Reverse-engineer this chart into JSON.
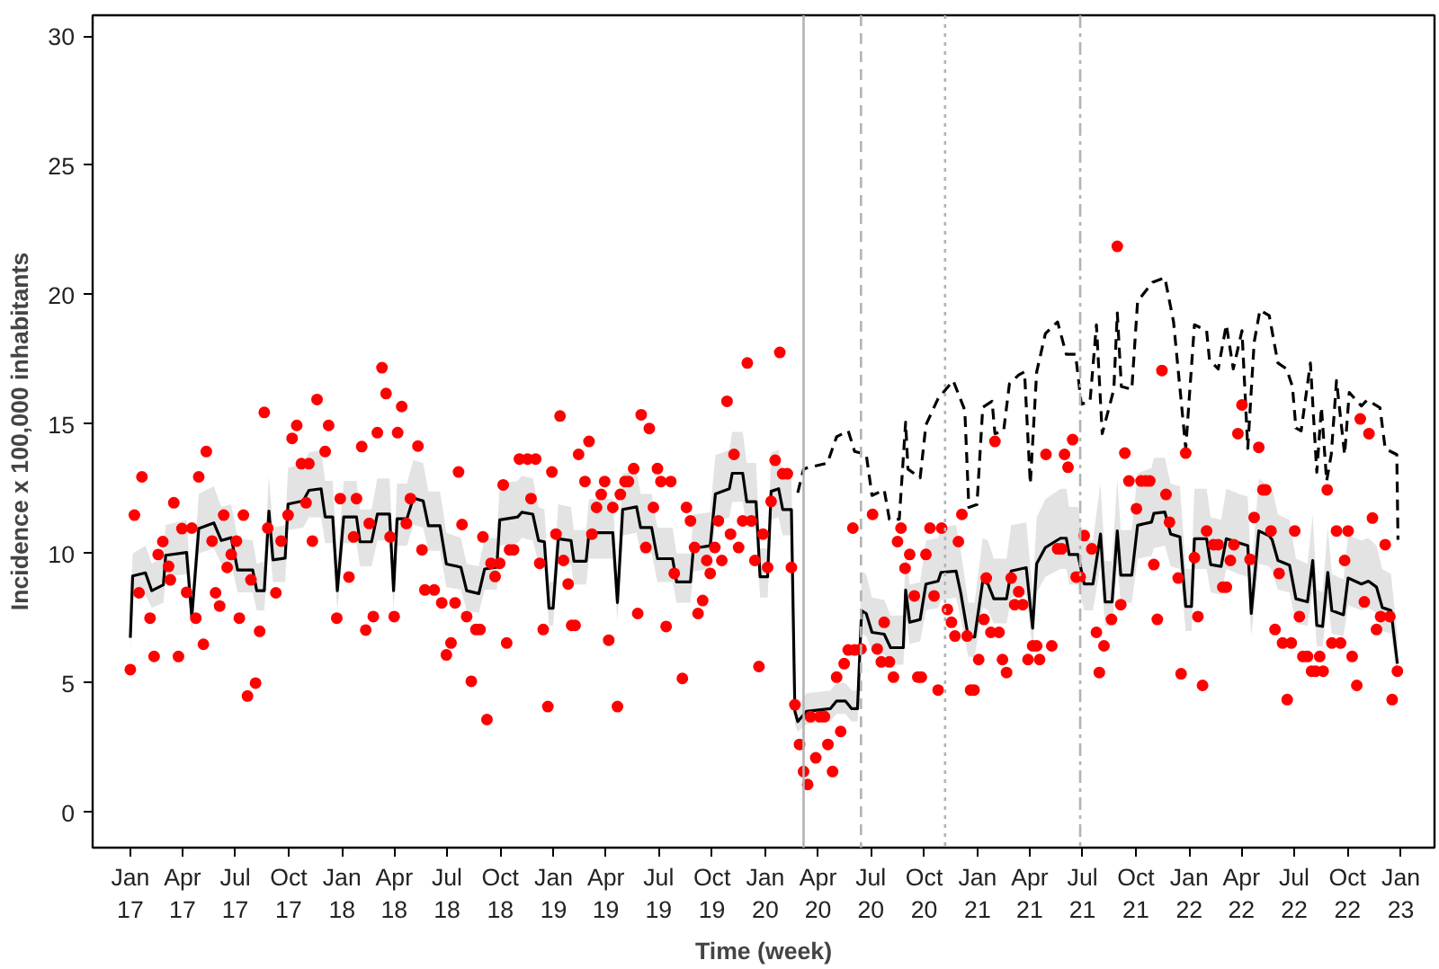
{
  "chart_data": {
    "type": "line",
    "xlabel": "Time (week)",
    "ylabel": "Incidence x 100,000 inhabitants",
    "xlim": [
      "2016-10-28",
      "2023-02-28"
    ],
    "ylim": [
      -1.37,
      30.8
    ],
    "xticks": [
      {
        "value": "2017-01-01",
        "label": "Jan\n17"
      },
      {
        "value": "2017-04-01",
        "label": "Apr\n17"
      },
      {
        "value": "2017-07-01",
        "label": "Jul\n17"
      },
      {
        "value": "2017-10-01",
        "label": "Oct\n17"
      },
      {
        "value": "2018-01-01",
        "label": "Jan\n18"
      },
      {
        "value": "2018-04-01",
        "label": "Apr\n18"
      },
      {
        "value": "2018-07-01",
        "label": "Jul\n18"
      },
      {
        "value": "2018-10-01",
        "label": "Oct\n18"
      },
      {
        "value": "2019-01-01",
        "label": "Jan\n19"
      },
      {
        "value": "2019-04-01",
        "label": "Apr\n19"
      },
      {
        "value": "2019-07-01",
        "label": "Jul\n19"
      },
      {
        "value": "2019-10-01",
        "label": "Oct\n19"
      },
      {
        "value": "2020-01-01",
        "label": "Jan\n20"
      },
      {
        "value": "2020-04-01",
        "label": "Apr\n20"
      },
      {
        "value": "2020-07-01",
        "label": "Jul\n20"
      },
      {
        "value": "2020-10-01",
        "label": "Oct\n20"
      },
      {
        "value": "2021-01-01",
        "label": "Jan\n21"
      },
      {
        "value": "2021-04-01",
        "label": "Apr\n21"
      },
      {
        "value": "2021-07-01",
        "label": "Jul\n21"
      },
      {
        "value": "2021-10-01",
        "label": "Oct\n21"
      },
      {
        "value": "2022-01-01",
        "label": "Jan\n22"
      },
      {
        "value": "2022-04-01",
        "label": "Apr\n22"
      },
      {
        "value": "2022-07-01",
        "label": "Jul\n22"
      },
      {
        "value": "2022-10-01",
        "label": "Oct\n22"
      },
      {
        "value": "2023-01-01",
        "label": "Jan\n23"
      }
    ],
    "yticks": [
      0,
      5,
      10,
      15,
      20,
      25,
      30
    ],
    "grid": false,
    "ref_lines": [
      {
        "axis": "x",
        "value": "2020-03-07",
        "color": "#b3b3b3",
        "line_style": "solid"
      },
      {
        "axis": "x",
        "value": "2020-06-14",
        "color": "#b3b3b3",
        "line_style": "dashed"
      },
      {
        "axis": "x",
        "value": "2020-11-06",
        "color": "#b3b3b3",
        "line_style": "dotted"
      },
      {
        "axis": "x",
        "value": "2021-06-27",
        "color": "#b3b3b3",
        "line_style": "dashdot"
      }
    ],
    "series": [
      {
        "color": "#000000",
        "line_style": "solid",
        "x": [
          "2017-01-01",
          "2017-01-05",
          "2017-01-27",
          "2017-02-07",
          "2017-02-27",
          "2017-03-03",
          "2017-04-08",
          "2017-04-17",
          "2017-04-29",
          "2017-05-25",
          "2017-06-07",
          "2017-06-24",
          "2017-07-05",
          "2017-07-31",
          "2017-08-07",
          "2017-08-20",
          "2017-08-28",
          "2017-09-04",
          "2017-09-25",
          "2017-09-30",
          "2017-10-26",
          "2017-11-05",
          "2017-11-26",
          "2017-12-03",
          "2017-12-16",
          "2017-12-24",
          "2018-01-04",
          "2018-01-26",
          "2018-02-01",
          "2018-02-21",
          "2018-03-03",
          "2018-03-24",
          "2018-03-31",
          "2018-04-06",
          "2018-04-23",
          "2018-05-04",
          "2018-05-21",
          "2018-05-30",
          "2018-06-19",
          "2018-06-30",
          "2018-07-25",
          "2018-08-04",
          "2018-08-25",
          "2018-09-04",
          "2018-09-25",
          "2018-09-30",
          "2018-10-31",
          "2018-11-07",
          "2018-11-26",
          "2018-12-06",
          "2018-12-16",
          "2018-12-24",
          "2018-12-31",
          "2019-01-09",
          "2019-01-31",
          "2019-02-05",
          "2019-02-26",
          "2019-03-03",
          "2019-04-13",
          "2019-04-21",
          "2019-04-30",
          "2019-05-24",
          "2019-05-31",
          "2019-06-19",
          "2019-06-29",
          "2019-07-25",
          "2019-08-01",
          "2019-08-25",
          "2019-08-30",
          "2019-09-28",
          "2019-10-07",
          "2019-10-31",
          "2019-11-05",
          "2019-11-23",
          "2019-11-30",
          "2019-12-16",
          "2019-12-23",
          "2020-01-05",
          "2020-01-11",
          "2020-01-24",
          "2020-01-31",
          "2020-02-15",
          "2020-02-21",
          "2020-02-26",
          "2020-03-12",
          "2020-04-22",
          "2020-05-03",
          "2020-05-18",
          "2020-05-29",
          "2020-06-08",
          "2020-06-15",
          "2020-06-23",
          "2020-07-03",
          "2020-07-24",
          "2020-08-04",
          "2020-08-26",
          "2020-08-30",
          "2020-09-06",
          "2020-09-24",
          "2020-10-04",
          "2020-10-25",
          "2020-10-30",
          "2020-11-25",
          "2020-12-03",
          "2020-12-16",
          "2020-12-27",
          "2021-01-10",
          "2021-01-19",
          "2021-01-29",
          "2021-02-20",
          "2021-02-28",
          "2021-03-26",
          "2021-04-06",
          "2021-04-13",
          "2021-04-28",
          "2021-05-24",
          "2021-06-03",
          "2021-06-08",
          "2021-06-23",
          "2021-07-04",
          "2021-07-19",
          "2021-08-01",
          "2021-08-09",
          "2021-08-21",
          "2021-08-30",
          "2021-09-05",
          "2021-09-24",
          "2021-10-04",
          "2021-10-28",
          "2021-11-01",
          "2021-11-20",
          "2021-11-30",
          "2021-12-16",
          "2021-12-26",
          "2022-01-05",
          "2022-01-10",
          "2022-01-31",
          "2022-02-07",
          "2022-02-25",
          "2022-03-06",
          "2022-03-28",
          "2022-04-12",
          "2022-04-18",
          "2022-05-01",
          "2022-05-19",
          "2022-05-24",
          "2022-06-03",
          "2022-06-23",
          "2022-07-04",
          "2022-07-24",
          "2022-08-02",
          "2022-08-09",
          "2022-08-19",
          "2022-08-28",
          "2022-09-04",
          "2022-09-24",
          "2022-10-02",
          "2022-10-25",
          "2022-11-06",
          "2022-11-20",
          "2022-11-30",
          "2022-12-15",
          "2022-12-26"
        ],
        "values": [
          6.74,
          9.13,
          9.25,
          8.56,
          8.79,
          9.93,
          10.04,
          7.54,
          10.96,
          11.18,
          10.5,
          10.61,
          9.36,
          9.36,
          8.56,
          8.56,
          11.64,
          9.75,
          9.82,
          11.91,
          12.03,
          12.44,
          12.5,
          11.41,
          11.41,
          8.56,
          11.41,
          11.41,
          10.45,
          10.45,
          11.52,
          11.52,
          8.56,
          11.34,
          11.34,
          12.14,
          12.03,
          11.07,
          11.07,
          9.59,
          9.47,
          8.56,
          8.45,
          9.4,
          9.47,
          11.3,
          11.41,
          11.59,
          11.52,
          10.5,
          10.45,
          7.88,
          7.88,
          10.57,
          10.5,
          9.7,
          9.7,
          10.8,
          10.8,
          8.1,
          11.7,
          11.8,
          11.0,
          11.0,
          9.8,
          9.8,
          8.9,
          8.9,
          10.2,
          10.3,
          12.3,
          12.5,
          13.1,
          13.1,
          12.0,
          12.0,
          9.1,
          9.1,
          12.4,
          12.5,
          11.7,
          11.7,
          3.9,
          3.5,
          3.9,
          4.0,
          4.3,
          4.3,
          4.0,
          4.0,
          7.79,
          7.68,
          6.95,
          6.88,
          6.36,
          6.36,
          8.59,
          7.34,
          7.45,
          8.82,
          8.93,
          9.27,
          9.32,
          8.48,
          6.77,
          6.77,
          8.93,
          8.82,
          8.25,
          8.25,
          9.32,
          9.45,
          7.11,
          9.61,
          10.23,
          10.59,
          10.59,
          9.96,
          9.96,
          8.82,
          8.82,
          10.75,
          8.13,
          8.13,
          10.87,
          9.16,
          9.16,
          11.09,
          11.21,
          11.55,
          11.6,
          10.75,
          10.64,
          7.95,
          7.95,
          10.57,
          10.57,
          9.57,
          9.5,
          10.57,
          10.41,
          10.3,
          7.68,
          10.87,
          10.68,
          10.53,
          9.73,
          9.55,
          8.25,
          8.13,
          9.73,
          7.22,
          7.18,
          9.27,
          7.79,
          7.63,
          9.05,
          8.82,
          8.93,
          8.7,
          7.91,
          7.79,
          5.74
        ],
        "lower": [
          6.3,
          8.3,
          8.4,
          7.9,
          8.1,
          9.1,
          9.2,
          7.0,
          10.0,
          10.2,
          9.6,
          9.6,
          8.5,
          8.5,
          7.8,
          7.8,
          10.6,
          8.9,
          8.9,
          10.9,
          11.0,
          11.4,
          11.4,
          10.4,
          10.4,
          7.8,
          10.4,
          10.4,
          9.5,
          9.5,
          10.5,
          10.5,
          7.8,
          10.3,
          10.3,
          11.1,
          11.0,
          10.1,
          10.1,
          8.7,
          8.6,
          7.8,
          7.7,
          8.6,
          8.6,
          10.3,
          10.4,
          10.6,
          10.5,
          9.6,
          9.5,
          7.2,
          7.2,
          9.6,
          9.6,
          8.8,
          8.8,
          9.8,
          9.8,
          7.4,
          10.7,
          10.8,
          10.0,
          10.0,
          8.9,
          8.9,
          8.1,
          8.1,
          9.3,
          9.4,
          11.2,
          11.4,
          12.0,
          12.0,
          11.0,
          11.0,
          8.3,
          8.3,
          11.3,
          11.4,
          10.7,
          10.7,
          3.4,
          3.1,
          3.4,
          3.5,
          3.8,
          3.8,
          3.5,
          3.5,
          6.9,
          6.8,
          6.2,
          6.1,
          5.7,
          5.7,
          7.6,
          6.5,
          6.6,
          7.8,
          7.9,
          8.2,
          8.3,
          7.5,
          6.0,
          6.0,
          7.9,
          7.8,
          7.3,
          7.3,
          8.3,
          8.4,
          6.3,
          8.5,
          9.1,
          9.4,
          9.4,
          8.8,
          8.8,
          7.8,
          7.8,
          9.5,
          7.2,
          7.2,
          9.6,
          8.1,
          8.1,
          9.8,
          9.9,
          10.2,
          10.3,
          9.5,
          9.4,
          7.0,
          7.0,
          9.4,
          9.4,
          8.5,
          8.4,
          9.4,
          9.2,
          9.1,
          6.8,
          9.6,
          9.5,
          9.3,
          8.6,
          8.5,
          7.3,
          7.2,
          8.6,
          6.4,
          6.4,
          8.2,
          6.9,
          6.8,
          8.0,
          7.8,
          7.9,
          7.7,
          7.0,
          6.9,
          5.1
        ],
        "upper": [
          7.3,
          10.0,
          10.3,
          9.6,
          9.9,
          11.1,
          11.3,
          8.4,
          12.3,
          12.6,
          11.8,
          11.9,
          10.6,
          10.5,
          9.6,
          9.7,
          13.0,
          11.0,
          11.1,
          13.3,
          13.5,
          13.9,
          14.0,
          12.8,
          12.8,
          9.6,
          12.8,
          12.8,
          11.7,
          11.7,
          12.9,
          12.9,
          9.6,
          12.7,
          12.7,
          13.6,
          13.5,
          12.4,
          12.4,
          10.8,
          10.6,
          9.6,
          9.5,
          10.6,
          10.6,
          12.7,
          12.8,
          13.0,
          12.9,
          11.8,
          11.7,
          8.9,
          8.9,
          11.9,
          11.8,
          10.9,
          10.9,
          12.1,
          12.1,
          9.1,
          13.1,
          13.2,
          12.3,
          12.3,
          11.0,
          11.0,
          10.0,
          10.0,
          11.5,
          11.6,
          13.8,
          14.0,
          14.7,
          14.7,
          13.5,
          13.5,
          10.2,
          10.2,
          13.9,
          14.0,
          13.1,
          13.1,
          4.6,
          4.1,
          4.6,
          4.7,
          5.0,
          5.0,
          4.7,
          4.7,
          9.3,
          9.2,
          8.3,
          8.2,
          7.6,
          7.6,
          10.2,
          8.8,
          8.9,
          10.5,
          10.6,
          11.0,
          11.1,
          10.1,
          8.1,
          8.1,
          10.6,
          10.5,
          9.8,
          9.8,
          11.1,
          11.2,
          8.5,
          11.4,
          12.1,
          12.5,
          12.5,
          11.8,
          11.8,
          10.5,
          10.5,
          12.7,
          9.7,
          9.7,
          12.9,
          10.9,
          10.9,
          13.1,
          13.3,
          13.7,
          13.7,
          12.7,
          12.6,
          9.4,
          9.4,
          12.5,
          12.5,
          11.4,
          11.3,
          12.5,
          12.3,
          12.2,
          9.1,
          12.9,
          12.6,
          12.5,
          11.5,
          11.3,
          9.8,
          9.6,
          11.5,
          8.6,
          8.5,
          11.0,
          9.2,
          9.0,
          10.7,
          10.5,
          10.6,
          10.3,
          9.4,
          9.2,
          6.8
        ]
      },
      {
        "color": "#000000",
        "line_style": "dashed",
        "x": [
          "2020-02-26",
          "2020-03-07",
          "2020-03-12",
          "2020-04-17",
          "2020-05-03",
          "2020-05-23",
          "2020-06-03",
          "2020-06-23",
          "2020-07-03",
          "2020-07-24",
          "2020-08-02",
          "2020-08-19",
          "2020-08-30",
          "2020-09-03",
          "2020-09-24",
          "2020-10-04",
          "2020-10-25",
          "2020-11-20",
          "2020-12-10",
          "2020-12-17",
          "2020-12-31",
          "2021-01-10",
          "2021-01-26",
          "2021-01-31",
          "2021-02-15",
          "2021-02-25",
          "2021-03-13",
          "2021-03-23",
          "2021-04-02",
          "2021-04-13",
          "2021-04-28",
          "2021-05-19",
          "2021-06-03",
          "2021-06-19",
          "2021-06-29",
          "2021-07-14",
          "2021-07-25",
          "2021-08-04",
          "2021-08-24",
          "2021-08-30",
          "2021-09-06",
          "2021-09-24",
          "2021-10-04",
          "2021-10-30",
          "2021-11-20",
          "2021-12-05",
          "2021-12-26",
          "2021-12-31",
          "2022-01-10",
          "2022-01-31",
          "2022-02-05",
          "2022-02-20",
          "2022-03-06",
          "2022-03-18",
          "2022-04-02",
          "2022-04-12",
          "2022-04-23",
          "2022-05-03",
          "2022-05-19",
          "2022-06-03",
          "2022-06-18",
          "2022-06-28",
          "2022-07-04",
          "2022-07-13",
          "2022-07-29",
          "2022-08-09",
          "2022-08-17",
          "2022-08-26",
          "2022-09-03",
          "2022-09-12",
          "2022-09-26",
          "2022-10-04",
          "2022-10-25",
          "2022-11-04",
          "2022-11-26",
          "2022-12-05",
          "2022-12-25",
          "2022-12-27"
        ],
        "values": [
          12.35,
          13.26,
          13.3,
          13.49,
          14.51,
          14.74,
          13.94,
          13.83,
          12.24,
          12.46,
          11.32,
          11.32,
          15.08,
          13.26,
          12.92,
          14.97,
          15.99,
          16.68,
          15.54,
          11.78,
          11.89,
          15.65,
          15.88,
          14.63,
          14.74,
          16.56,
          16.9,
          17.02,
          12.69,
          17.02,
          18.5,
          18.95,
          17.7,
          17.7,
          15.77,
          15.88,
          18.84,
          14.63,
          16.34,
          19.3,
          16.45,
          16.34,
          19.75,
          20.48,
          20.66,
          18.95,
          14.06,
          15.65,
          18.84,
          18.61,
          17.48,
          17.13,
          18.84,
          17.13,
          18.61,
          14.06,
          18.16,
          19.41,
          19.19,
          17.36,
          17.13,
          16.45,
          14.85,
          14.74,
          17.36,
          13.14,
          15.65,
          12.8,
          13.83,
          16.68,
          13.82,
          16.22,
          15.7,
          15.93,
          15.63,
          14.05,
          13.82,
          10.53
        ]
      },
      {
        "type": "scatter",
        "color": "#ff0000",
        "marker": "circle",
        "x": [
          "2017-01-01",
          "2017-01-08",
          "2017-01-16",
          "2017-01-21",
          "2017-02-04",
          "2017-02-11",
          "2017-02-18",
          "2017-02-26",
          "2017-03-08",
          "2017-03-11",
          "2017-03-17",
          "2017-03-25",
          "2017-03-31",
          "2017-04-08",
          "2017-04-17",
          "2017-04-24",
          "2017-04-29",
          "2017-05-07",
          "2017-05-12",
          "2017-05-22",
          "2017-05-28",
          "2017-06-04",
          "2017-06-11",
          "2017-06-17",
          "2017-06-24",
          "2017-07-03",
          "2017-07-08",
          "2017-07-15",
          "2017-07-22",
          "2017-07-28",
          "2017-08-05",
          "2017-08-12",
          "2017-08-20",
          "2017-08-26",
          "2017-09-09",
          "2017-09-18",
          "2017-09-30",
          "2017-10-07",
          "2017-10-15",
          "2017-10-23",
          "2017-10-31",
          "2017-11-05",
          "2017-11-11",
          "2017-11-19",
          "2017-12-03",
          "2017-12-09",
          "2017-12-23",
          "2017-12-29",
          "2018-01-13",
          "2018-01-21",
          "2018-01-26",
          "2018-02-04",
          "2018-02-11",
          "2018-02-17",
          "2018-02-24",
          "2018-03-03",
          "2018-03-11",
          "2018-03-18",
          "2018-03-25",
          "2018-04-01",
          "2018-04-07",
          "2018-04-14",
          "2018-04-22",
          "2018-04-29",
          "2018-05-12",
          "2018-05-19",
          "2018-05-24",
          "2018-06-09",
          "2018-06-22",
          "2018-06-30",
          "2018-07-08",
          "2018-07-15",
          "2018-07-21",
          "2018-07-27",
          "2018-08-04",
          "2018-08-12",
          "2018-08-20",
          "2018-08-27",
          "2018-09-01",
          "2018-09-08",
          "2018-09-15",
          "2018-09-22",
          "2018-09-30",
          "2018-10-06",
          "2018-10-12",
          "2018-10-17",
          "2018-10-24",
          "2018-11-03",
          "2018-11-17",
          "2018-11-23",
          "2018-12-01",
          "2018-12-08",
          "2018-12-14",
          "2018-12-22",
          "2018-12-29",
          "2019-01-05",
          "2019-01-12",
          "2019-01-18",
          "2019-01-26",
          "2019-02-01",
          "2019-02-07",
          "2019-02-13",
          "2019-02-24",
          "2019-03-03",
          "2019-03-08",
          "2019-03-16",
          "2019-03-24",
          "2019-03-30",
          "2019-04-06",
          "2019-04-13",
          "2019-04-21",
          "2019-04-26",
          "2019-05-04",
          "2019-05-10",
          "2019-05-19",
          "2019-05-26",
          "2019-06-01",
          "2019-06-09",
          "2019-06-15",
          "2019-06-22",
          "2019-06-29",
          "2019-07-05",
          "2019-07-14",
          "2019-07-22",
          "2019-07-28",
          "2019-08-11",
          "2019-08-18",
          "2019-08-25",
          "2019-09-01",
          "2019-09-07",
          "2019-09-15",
          "2019-09-22",
          "2019-09-28",
          "2019-10-06",
          "2019-10-12",
          "2019-10-18",
          "2019-10-27",
          "2019-11-02",
          "2019-11-08",
          "2019-11-16",
          "2019-11-23",
          "2019-12-01",
          "2019-12-08",
          "2019-12-14",
          "2019-12-21",
          "2019-12-28",
          "2020-01-05",
          "2020-01-11",
          "2020-01-18",
          "2020-01-26",
          "2020-01-31",
          "2020-02-08",
          "2020-02-15",
          "2020-02-21",
          "2020-02-29",
          "2020-03-07",
          "2020-03-14",
          "2020-03-19",
          "2020-03-28",
          "2020-04-04",
          "2020-04-12",
          "2020-04-18",
          "2020-04-26",
          "2020-05-03",
          "2020-05-10",
          "2020-05-16",
          "2020-05-23",
          "2020-05-31",
          "2020-06-03",
          "2020-06-14",
          "2020-07-04",
          "2020-07-12",
          "2020-07-19",
          "2020-07-24",
          "2020-08-02",
          "2020-08-09",
          "2020-08-16",
          "2020-08-22",
          "2020-08-29",
          "2020-09-06",
          "2020-09-14",
          "2020-09-20",
          "2020-09-26",
          "2020-10-04",
          "2020-10-11",
          "2020-10-18",
          "2020-10-25",
          "2020-10-31",
          "2020-11-10",
          "2020-11-17",
          "2020-11-23",
          "2020-11-29",
          "2020-12-05",
          "2020-12-14",
          "2020-12-20",
          "2020-12-26",
          "2021-01-03",
          "2021-01-12",
          "2021-01-16",
          "2021-01-24",
          "2021-01-31",
          "2021-02-07",
          "2021-02-13",
          "2021-02-20",
          "2021-02-28",
          "2021-03-06",
          "2021-03-13",
          "2021-03-20",
          "2021-03-29",
          "2021-04-06",
          "2021-04-13",
          "2021-04-18",
          "2021-04-29",
          "2021-05-09",
          "2021-05-19",
          "2021-05-26",
          "2021-05-31",
          "2021-06-06",
          "2021-06-14",
          "2021-06-20",
          "2021-06-27",
          "2021-07-04",
          "2021-07-17",
          "2021-07-25",
          "2021-07-30",
          "2021-08-07",
          "2021-08-20",
          "2021-08-30",
          "2021-09-05",
          "2021-09-12",
          "2021-09-19",
          "2021-10-02",
          "2021-10-10",
          "2021-10-18",
          "2021-10-25",
          "2021-11-01",
          "2021-11-07",
          "2021-11-15",
          "2021-11-22",
          "2021-11-28",
          "2021-12-13",
          "2021-12-18",
          "2021-12-26",
          "2022-01-10",
          "2022-01-16",
          "2022-01-24",
          "2022-01-31",
          "2022-02-12",
          "2022-02-20",
          "2022-02-28",
          "2022-03-06",
          "2022-03-13",
          "2022-03-19",
          "2022-03-26",
          "2022-04-02",
          "2022-04-16",
          "2022-04-23",
          "2022-05-01",
          "2022-05-08",
          "2022-05-13",
          "2022-05-22",
          "2022-05-29",
          "2022-06-05",
          "2022-06-11",
          "2022-06-19",
          "2022-06-26",
          "2022-07-02",
          "2022-07-10",
          "2022-07-16",
          "2022-07-24",
          "2022-07-31",
          "2022-08-07",
          "2022-08-14",
          "2022-08-20",
          "2022-08-27",
          "2022-09-04",
          "2022-09-12",
          "2022-09-19",
          "2022-09-26",
          "2022-10-02",
          "2022-10-09",
          "2022-10-17",
          "2022-10-23",
          "2022-10-30",
          "2022-11-07",
          "2022-11-13",
          "2022-11-20",
          "2022-11-27",
          "2022-12-05",
          "2022-12-13",
          "2022-12-17",
          "2022-12-26"
        ],
        "values": [
          5.51,
          11.48,
          8.48,
          12.96,
          7.5,
          6.02,
          9.96,
          10.46,
          9.5,
          8.98,
          11.96,
          6.02,
          10.96,
          8.5,
          10.98,
          7.5,
          12.96,
          6.49,
          13.94,
          10.48,
          8.48,
          7.97,
          11.48,
          9.46,
          9.96,
          10.48,
          7.5,
          11.48,
          4.49,
          8.98,
          4.99,
          6.99,
          15.45,
          10.98,
          8.48,
          10.48,
          11.48,
          14.45,
          14.95,
          13.47,
          11.96,
          13.47,
          10.48,
          15.95,
          13.94,
          14.95,
          7.5,
          12.12,
          9.09,
          10.64,
          12.12,
          14.13,
          7.04,
          11.16,
          7.56,
          14.67,
          17.18,
          16.18,
          10.64,
          7.56,
          14.67,
          15.68,
          11.16,
          12.12,
          14.15,
          10.14,
          8.59,
          8.59,
          8.09,
          6.08,
          6.54,
          8.09,
          13.15,
          11.12,
          7.56,
          5.06,
          7.06,
          7.06,
          10.64,
          3.58,
          9.62,
          9.11,
          9.62,
          12.65,
          6.54,
          10.14,
          10.14,
          13.65,
          13.65,
          12.12,
          13.65,
          9.62,
          7.06,
          4.08,
          13.15,
          10.75,
          15.31,
          9.73,
          8.82,
          7.22,
          7.22,
          13.83,
          12.78,
          14.33,
          10.75,
          11.78,
          12.28,
          12.78,
          6.65,
          11.78,
          4.08,
          12.28,
          12.78,
          12.78,
          13.28,
          7.68,
          15.36,
          10.23,
          14.83,
          11.78,
          13.28,
          12.78,
          7.18,
          12.78,
          9.23,
          5.17,
          11.78,
          11.26,
          10.23,
          7.68,
          8.18,
          9.73,
          9.23,
          10.23,
          11.26,
          9.73,
          15.88,
          10.75,
          13.83,
          10.23,
          11.26,
          17.36,
          11.26,
          9.73,
          5.63,
          10.75,
          9.46,
          12.01,
          13.6,
          17.77,
          13.08,
          13.08,
          9.46,
          4.15,
          2.62,
          1.57,
          1.07,
          3.69,
          2.1,
          3.69,
          3.69,
          2.62,
          1.57,
          5.22,
          3.12,
          5.74,
          6.27,
          10.98,
          6.27,
          6.31,
          11.51,
          6.31,
          5.81,
          7.34,
          5.81,
          5.22,
          10.46,
          10.98,
          9.43,
          9.96,
          8.36,
          5.22,
          5.22,
          9.96,
          10.98,
          8.36,
          4.72,
          10.98,
          7.84,
          7.34,
          6.81,
          10.46,
          11.51,
          6.81,
          4.72,
          4.72,
          5.9,
          7.45,
          9.05,
          6.95,
          14.33,
          6.95,
          5.9,
          5.4,
          9.05,
          8.02,
          8.52,
          8.02,
          5.9,
          6.43,
          6.43,
          5.9,
          13.83,
          6.43,
          10.18,
          10.18,
          13.83,
          13.33,
          14.4,
          9.09,
          9.09,
          10.69,
          10.18,
          6.95,
          5.4,
          6.43,
          7.45,
          21.87,
          8.02,
          13.88,
          12.8,
          11.73,
          12.8,
          12.8,
          12.8,
          9.57,
          7.45,
          17.07,
          12.28,
          11.21,
          9.05,
          5.35,
          13.88,
          9.84,
          7.56,
          4.9,
          10.87,
          10.34,
          10.34,
          8.7,
          8.7,
          9.73,
          10.34,
          14.63,
          15.74,
          9.77,
          11.39,
          14.1,
          12.46,
          12.46,
          10.87,
          7.06,
          9.23,
          6.54,
          4.35,
          6.54,
          10.87,
          7.56,
          6.02,
          6.02,
          5.45,
          5.45,
          6.02,
          5.45,
          12.46,
          6.54,
          10.87,
          6.54,
          9.73,
          10.87,
          6.02,
          4.9,
          15.2,
          8.13,
          14.63,
          11.37,
          7.06,
          7.56,
          10.34,
          7.56,
          4.35,
          5.45
        ]
      }
    ]
  }
}
